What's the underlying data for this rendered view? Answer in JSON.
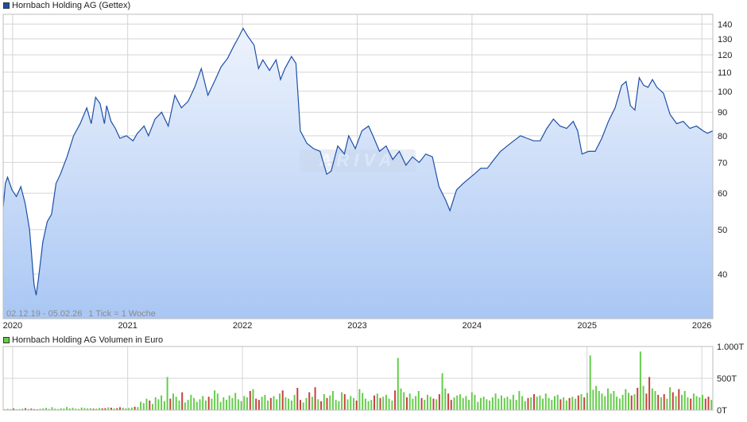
{
  "colors": {
    "price_line": "#1d4fa8",
    "area_top": "#eef3fc",
    "area_bottom": "#a9c7f4",
    "volume_up": "#66cc4c",
    "volume_down": "#c84040",
    "grid": "#d4d4d4"
  },
  "legend": {
    "price_label": "Hornbach Holding AG (Gettex)",
    "volume_label": "Hornbach Holding AG Volumen in Euro"
  },
  "info": {
    "date_range": "02.12.19 - 05.02.26",
    "tick_note": "1 Tick = 1 Woche"
  },
  "chart_data": [
    {
      "type": "area",
      "title": "Hornbach Holding AG (Gettex)",
      "scale": "log",
      "grid": true,
      "xlim": [
        "2019-12-02",
        "2026-02-05"
      ],
      "ylim": [
        32,
        147
      ],
      "x_tick_labels": [
        "2020",
        "2021",
        "2022",
        "2023",
        "2024",
        "2025",
        "2026"
      ],
      "y_tick_labels": [
        "40",
        "50",
        "60",
        "70",
        "80",
        "90",
        "100",
        "110",
        "120",
        "130",
        "140"
      ],
      "series": [
        {
          "name": "Hornbach Holding AG (Gettex)",
          "points": [
            [
              "2019-12-02",
              56
            ],
            [
              "2019-12-09",
              63
            ],
            [
              "2019-12-16",
              65
            ],
            [
              "2019-12-30",
              61
            ],
            [
              "2020-01-13",
              59
            ],
            [
              "2020-01-27",
              62
            ],
            [
              "2020-02-10",
              57
            ],
            [
              "2020-02-24",
              50
            ],
            [
              "2020-03-09",
              38
            ],
            [
              "2020-03-16",
              36
            ],
            [
              "2020-03-23",
              39
            ],
            [
              "2020-04-06",
              47
            ],
            [
              "2020-04-20",
              52
            ],
            [
              "2020-05-04",
              54
            ],
            [
              "2020-05-18",
              63
            ],
            [
              "2020-06-01",
              66
            ],
            [
              "2020-06-22",
              72
            ],
            [
              "2020-07-13",
              80
            ],
            [
              "2020-08-03",
              85
            ],
            [
              "2020-08-24",
              92
            ],
            [
              "2020-09-07",
              85
            ],
            [
              "2020-09-21",
              97
            ],
            [
              "2020-10-05",
              94
            ],
            [
              "2020-10-19",
              85
            ],
            [
              "2020-10-26",
              93
            ],
            [
              "2020-11-09",
              86
            ],
            [
              "2020-11-23",
              83
            ],
            [
              "2020-12-07",
              79
            ],
            [
              "2020-12-28",
              80
            ],
            [
              "2021-01-18",
              78
            ],
            [
              "2021-02-01",
              81
            ],
            [
              "2021-02-22",
              84
            ],
            [
              "2021-03-08",
              80
            ],
            [
              "2021-03-29",
              87
            ],
            [
              "2021-04-19",
              90
            ],
            [
              "2021-05-10",
              84
            ],
            [
              "2021-05-31",
              98
            ],
            [
              "2021-06-21",
              92
            ],
            [
              "2021-07-12",
              95
            ],
            [
              "2021-08-02",
              102
            ],
            [
              "2021-08-23",
              112
            ],
            [
              "2021-09-13",
              98
            ],
            [
              "2021-10-04",
              105
            ],
            [
              "2021-10-25",
              113
            ],
            [
              "2021-11-15",
              118
            ],
            [
              "2021-12-06",
              126
            ],
            [
              "2021-12-20",
              131
            ],
            [
              "2022-01-03",
              137
            ],
            [
              "2022-01-17",
              132
            ],
            [
              "2022-02-07",
              126
            ],
            [
              "2022-02-21",
              112
            ],
            [
              "2022-03-07",
              117
            ],
            [
              "2022-03-28",
              111
            ],
            [
              "2022-04-18",
              117
            ],
            [
              "2022-05-02",
              106
            ],
            [
              "2022-05-16",
              112
            ],
            [
              "2022-06-06",
              119
            ],
            [
              "2022-06-20",
              115
            ],
            [
              "2022-07-04",
              82
            ],
            [
              "2022-07-25",
              77
            ],
            [
              "2022-08-15",
              75
            ],
            [
              "2022-09-05",
              74
            ],
            [
              "2022-09-26",
              66
            ],
            [
              "2022-10-10",
              67
            ],
            [
              "2022-10-31",
              76
            ],
            [
              "2022-11-21",
              73
            ],
            [
              "2022-12-05",
              80
            ],
            [
              "2022-12-26",
              75
            ],
            [
              "2023-01-16",
              82
            ],
            [
              "2023-02-06",
              84
            ],
            [
              "2023-02-20",
              80
            ],
            [
              "2023-03-13",
              74
            ],
            [
              "2023-04-03",
              76
            ],
            [
              "2023-04-24",
              71
            ],
            [
              "2023-05-15",
              74
            ],
            [
              "2023-06-05",
              69
            ],
            [
              "2023-06-26",
              72
            ],
            [
              "2023-07-17",
              70
            ],
            [
              "2023-08-07",
              73
            ],
            [
              "2023-08-28",
              72
            ],
            [
              "2023-09-18",
              62
            ],
            [
              "2023-10-09",
              58
            ],
            [
              "2023-10-23",
              55
            ],
            [
              "2023-11-13",
              61
            ],
            [
              "2023-12-04",
              63
            ],
            [
              "2024-01-08",
              66
            ],
            [
              "2024-01-29",
              68
            ],
            [
              "2024-02-19",
              68
            ],
            [
              "2024-03-11",
              71
            ],
            [
              "2024-04-01",
              74
            ],
            [
              "2024-04-22",
              76
            ],
            [
              "2024-05-13",
              78
            ],
            [
              "2024-06-03",
              80
            ],
            [
              "2024-06-24",
              79
            ],
            [
              "2024-07-15",
              78
            ],
            [
              "2024-08-05",
              78
            ],
            [
              "2024-08-26",
              83
            ],
            [
              "2024-09-16",
              87
            ],
            [
              "2024-10-07",
              84
            ],
            [
              "2024-10-28",
              83
            ],
            [
              "2024-11-18",
              86
            ],
            [
              "2024-12-02",
              82
            ],
            [
              "2024-12-16",
              73
            ],
            [
              "2025-01-06",
              74
            ],
            [
              "2025-01-27",
              74
            ],
            [
              "2025-02-17",
              79
            ],
            [
              "2025-03-10",
              86
            ],
            [
              "2025-03-31",
              92
            ],
            [
              "2025-04-21",
              103
            ],
            [
              "2025-05-05",
              105
            ],
            [
              "2025-05-19",
              93
            ],
            [
              "2025-06-02",
              91
            ],
            [
              "2025-06-16",
              107
            ],
            [
              "2025-06-30",
              103
            ],
            [
              "2025-07-14",
              102
            ],
            [
              "2025-07-28",
              106
            ],
            [
              "2025-08-11",
              102
            ],
            [
              "2025-09-01",
              99
            ],
            [
              "2025-09-22",
              89
            ],
            [
              "2025-10-13",
              85
            ],
            [
              "2025-11-03",
              86
            ],
            [
              "2025-11-24",
              83
            ],
            [
              "2025-12-15",
              84
            ],
            [
              "2026-01-05",
              82
            ],
            [
              "2026-01-19",
              81
            ],
            [
              "2026-02-05",
              82
            ]
          ]
        }
      ]
    },
    {
      "type": "bar",
      "title": "Hornbach Holding AG Volumen in Euro",
      "ylim": [
        0,
        1000000
      ],
      "y_tick_labels": [
        "1.000T",
        "500T",
        "0T"
      ],
      "series": [
        {
          "name": "Hornbach Holding AG Volumen in Euro",
          "values": [
            12000,
            20000,
            15000,
            25000,
            10000,
            18000,
            22000,
            30000,
            18000,
            24000,
            15000,
            12000,
            20000,
            26000,
            35000,
            18000,
            45000,
            22000,
            16000,
            30000,
            25000,
            48000,
            28000,
            36000,
            22000,
            18000,
            40000,
            32000,
            26000,
            30000,
            22000,
            24000,
            35000,
            28000,
            30000,
            42000,
            38000,
            26000,
            30000,
            45000,
            36000,
            28000,
            32000,
            40000,
            52000,
            48000,
            130000,
            110000,
            180000,
            150000,
            95000,
            200000,
            170000,
            230000,
            140000,
            520000,
            180000,
            260000,
            210000,
            150000,
            280000,
            120000,
            160000,
            240000,
            190000,
            130000,
            170000,
            220000,
            150000,
            210000,
            180000,
            310000,
            260000,
            130000,
            200000,
            160000,
            230000,
            190000,
            270000,
            170000,
            140000,
            220000,
            200000,
            300000,
            330000,
            180000,
            160000,
            210000,
            240000,
            150000,
            190000,
            220000,
            170000,
            260000,
            310000,
            200000,
            180000,
            150000,
            240000,
            350000,
            160000,
            120000,
            190000,
            280000,
            210000,
            360000,
            170000,
            140000,
            250000,
            190000,
            230000,
            300000,
            160000,
            140000,
            280000,
            250000,
            170000,
            220000,
            190000,
            150000,
            330000,
            270000,
            180000,
            140000,
            160000,
            230000,
            260000,
            190000,
            210000,
            240000,
            180000,
            150000,
            310000,
            820000,
            340000,
            280000,
            200000,
            260000,
            180000,
            220000,
            300000,
            190000,
            160000,
            240000,
            210000,
            180000,
            170000,
            250000,
            580000,
            340000,
            260000,
            160000,
            200000,
            230000,
            250000,
            190000,
            220000,
            160000,
            280000,
            240000,
            130000,
            190000,
            210000,
            170000,
            150000,
            200000,
            260000,
            180000,
            230000,
            190000,
            210000,
            170000,
            240000,
            160000,
            300000,
            220000,
            140000,
            190000,
            200000,
            250000,
            210000,
            230000,
            180000,
            260000,
            190000,
            160000,
            220000,
            240000,
            170000,
            200000,
            150000,
            190000,
            210000,
            180000,
            230000,
            250000,
            200000,
            270000,
            860000,
            320000,
            380000,
            300000,
            260000,
            220000,
            340000,
            260000,
            300000,
            210000,
            180000,
            240000,
            330000,
            270000,
            230000,
            250000,
            350000,
            920000,
            380000,
            260000,
            520000,
            340000,
            300000,
            240000,
            200000,
            250000,
            180000,
            360000,
            280000,
            220000,
            330000,
            240000,
            300000,
            200000,
            180000,
            260000,
            220000,
            200000,
            240000,
            180000,
            210000,
            160000
          ]
        }
      ]
    }
  ]
}
